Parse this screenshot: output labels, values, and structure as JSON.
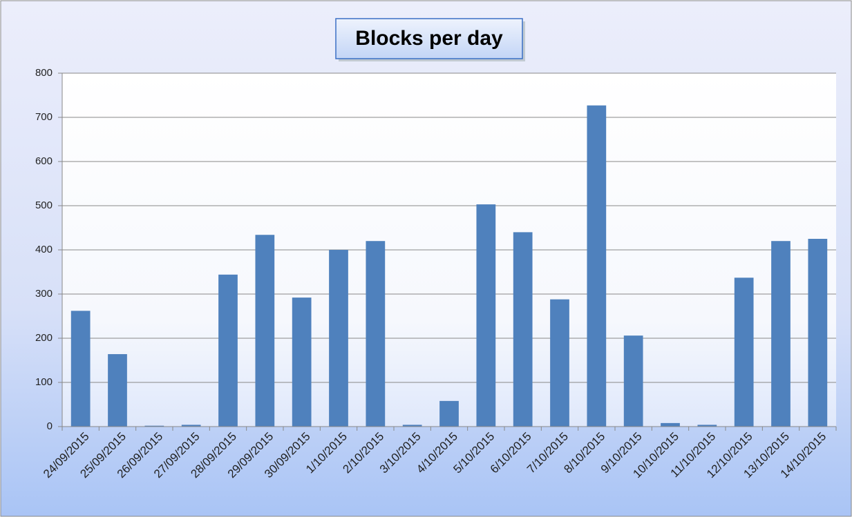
{
  "chart_data": {
    "type": "bar",
    "title": "Blocks per day",
    "categories": [
      "24/09/2015",
      "25/09/2015",
      "26/09/2015",
      "27/09/2015",
      "28/09/2015",
      "29/09/2015",
      "30/09/2015",
      "1/10/2015",
      "2/10/2015",
      "3/10/2015",
      "4/10/2015",
      "5/10/2015",
      "6/10/2015",
      "7/10/2015",
      "8/10/2015",
      "9/10/2015",
      "10/10/2015",
      "11/10/2015",
      "12/10/2015",
      "13/10/2015",
      "14/10/2015"
    ],
    "values": [
      262,
      164,
      2,
      4,
      344,
      434,
      292,
      400,
      420,
      4,
      58,
      503,
      440,
      288,
      727,
      206,
      8,
      4,
      337,
      420,
      425
    ],
    "color": "#4f81bd",
    "ylim": [
      0,
      800
    ],
    "yticks": [
      0,
      100,
      200,
      300,
      400,
      500,
      600,
      700,
      800
    ],
    "grid": true
  }
}
